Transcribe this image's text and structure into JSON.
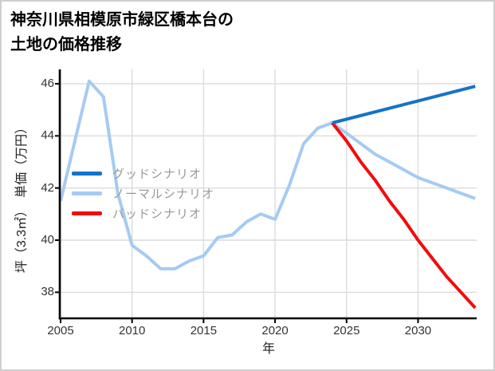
{
  "title": {
    "line1": "神奈川県相模原市緑区橋本台の",
    "line2": "土地の価格推移"
  },
  "axes": {
    "x_label": "年",
    "y_label": "坪（3.3㎡）　単価（万円）",
    "x_ticks": [
      2005,
      2010,
      2015,
      2020,
      2025,
      2030
    ],
    "y_ticks": [
      38,
      40,
      42,
      44,
      46
    ]
  },
  "legend": [
    {
      "label": "グッドシナリオ",
      "color": "#1673c8"
    },
    {
      "label": "ノーマルシナリオ",
      "color": "#a6cbf2"
    },
    {
      "label": "バッドシナリオ",
      "color": "#f20c0c"
    }
  ],
  "colors": {
    "good": "#1673c8",
    "normal": "#a6cbf2",
    "bad": "#f20c0c",
    "grid": "#dcdcdc",
    "axis": "#000000",
    "tick_text": "#333333",
    "legend_text": "#999999"
  },
  "chart_data": {
    "type": "line",
    "title": "神奈川県相模原市緑区橋本台の土地の価格推移",
    "xlabel": "年",
    "ylabel": "坪（3.3㎡）単価（万円）",
    "xlim": [
      2005,
      2034.1
    ],
    "ylim": [
      37.0,
      46.55
    ],
    "grid": true,
    "legend_position": "upper-left-inside",
    "series": [
      {
        "name": "ノーマルシナリオ",
        "color": "#a6cbf2",
        "width": 4,
        "points": [
          [
            2005,
            41.5
          ],
          [
            2006,
            43.8
          ],
          [
            2007,
            46.1
          ],
          [
            2008,
            45.5
          ],
          [
            2009,
            41.8
          ],
          [
            2010,
            39.8
          ],
          [
            2011,
            39.4
          ],
          [
            2012,
            38.9
          ],
          [
            2013,
            38.9
          ],
          [
            2014,
            39.2
          ],
          [
            2015,
            39.4
          ],
          [
            2016,
            40.1
          ],
          [
            2017,
            40.2
          ],
          [
            2018,
            40.7
          ],
          [
            2019,
            41.0
          ],
          [
            2020,
            40.8
          ],
          [
            2021,
            42.1
          ],
          [
            2022,
            43.7
          ],
          [
            2023,
            44.3
          ],
          [
            2024,
            44.5
          ],
          [
            2025,
            44.1
          ],
          [
            2026,
            43.7
          ],
          [
            2027,
            43.3
          ],
          [
            2028,
            43.0
          ],
          [
            2029,
            42.7
          ],
          [
            2030,
            42.4
          ],
          [
            2031,
            42.2
          ],
          [
            2032,
            42.0
          ],
          [
            2033,
            41.8
          ],
          [
            2034,
            41.6
          ]
        ]
      },
      {
        "name": "バッドシナリオ",
        "color": "#f20c0c",
        "width": 4,
        "points": [
          [
            2024,
            44.5
          ],
          [
            2025,
            43.8
          ],
          [
            2026,
            43.0
          ],
          [
            2027,
            42.3
          ],
          [
            2028,
            41.5
          ],
          [
            2029,
            40.8
          ],
          [
            2030,
            40.0
          ],
          [
            2031,
            39.3
          ],
          [
            2032,
            38.6
          ],
          [
            2033,
            38.0
          ],
          [
            2034,
            37.4
          ]
        ]
      },
      {
        "name": "グッドシナリオ",
        "color": "#1673c8",
        "width": 4,
        "points": [
          [
            2024,
            44.5
          ],
          [
            2034,
            45.9
          ]
        ]
      }
    ]
  }
}
